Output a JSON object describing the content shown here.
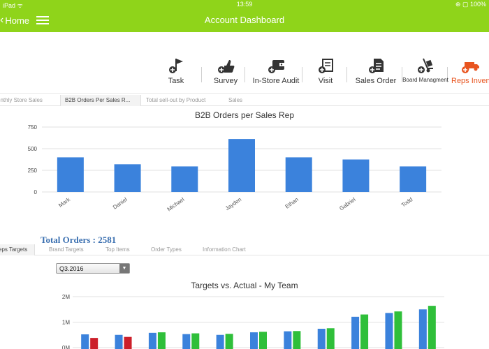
{
  "status_bar": {
    "left": "iPad ᯤ",
    "time": "13:59",
    "right": "⊕ ▢ 100%"
  },
  "nav": {
    "back_label": "Home",
    "title": "Account Dashboard"
  },
  "toolbar": [
    {
      "id": "task",
      "label": "Task",
      "icon": "flag-plus-icon",
      "active": false
    },
    {
      "id": "survey",
      "label": "Survey",
      "icon": "thumbs-up-plus-icon",
      "active": false
    },
    {
      "id": "in-store-audit",
      "label": "In-Store Audit",
      "icon": "wallet-plus-icon",
      "active": false
    },
    {
      "id": "visit",
      "label": "Visit",
      "icon": "map-plus-icon",
      "active": false
    },
    {
      "id": "sales-order",
      "label": "Sales Order",
      "icon": "document-plus-icon",
      "active": false
    },
    {
      "id": "board-management",
      "label": "Board Managment",
      "icon": "hand-truck-plus-icon",
      "active": false
    },
    {
      "id": "reps-inventory",
      "label": "Reps Invent",
      "icon": "truck-plus-icon",
      "active": true
    }
  ],
  "tabs_top": [
    {
      "label": "onthly Store Sales",
      "selected": false
    },
    {
      "label": "B2B Orders Per Sales R...",
      "selected": true
    },
    {
      "label": "Total sell-out by Product",
      "selected": false
    },
    {
      "label": "Sales",
      "selected": false
    }
  ],
  "total_orders": "Total Orders : 2581",
  "tabs_bottom": [
    {
      "label": "eps Targets",
      "selected": true
    },
    {
      "label": "Brand Targets",
      "selected": false
    },
    {
      "label": "Top Items",
      "selected": false
    },
    {
      "label": "Order Types",
      "selected": false
    },
    {
      "label": "Information Chart",
      "selected": false
    }
  ],
  "period_select": {
    "value": "Q3.2016"
  },
  "colors": {
    "header": "#8fd41a",
    "bar_blue": "#3b82dc",
    "bar_green": "#2fbf3a",
    "bar_red": "#cc1f2a",
    "active_tool": "#e8541f"
  },
  "chart_data": [
    {
      "type": "bar",
      "title": "B2B Orders per Sales Rep",
      "categories": [
        "Mark",
        "Daniel",
        "Michael",
        "Jayden",
        "Ethan",
        "Gabriel",
        "Todd"
      ],
      "values": [
        400,
        320,
        295,
        612,
        400,
        375,
        295
      ],
      "yticks": [
        "0",
        "250",
        "500",
        "750"
      ],
      "ylim": [
        0,
        750
      ],
      "grid": true
    },
    {
      "type": "bar",
      "title": "Targets vs. Actual - My Team",
      "yticks": [
        "0M",
        "1M",
        "2M"
      ],
      "ylim": [
        0,
        2000000
      ],
      "series": [
        {
          "values": [
            520000,
            500000,
            580000,
            530000,
            500000,
            600000,
            640000,
            740000,
            1210000,
            1360000,
            1500000
          ]
        },
        {
          "values": [
            380000,
            420000,
            600000,
            560000,
            540000,
            620000,
            650000,
            760000,
            1300000,
            1420000,
            1640000
          ]
        }
      ],
      "series_colors": [
        [
          "#3b82dc",
          "#3b82dc",
          "#3b82dc",
          "#3b82dc",
          "#3b82dc",
          "#3b82dc",
          "#3b82dc",
          "#3b82dc",
          "#3b82dc",
          "#3b82dc",
          "#3b82dc"
        ],
        [
          "#cc1f2a",
          "#cc1f2a",
          "#2fbf3a",
          "#2fbf3a",
          "#2fbf3a",
          "#2fbf3a",
          "#2fbf3a",
          "#2fbf3a",
          "#2fbf3a",
          "#2fbf3a",
          "#2fbf3a"
        ]
      ],
      "grid": true
    }
  ]
}
